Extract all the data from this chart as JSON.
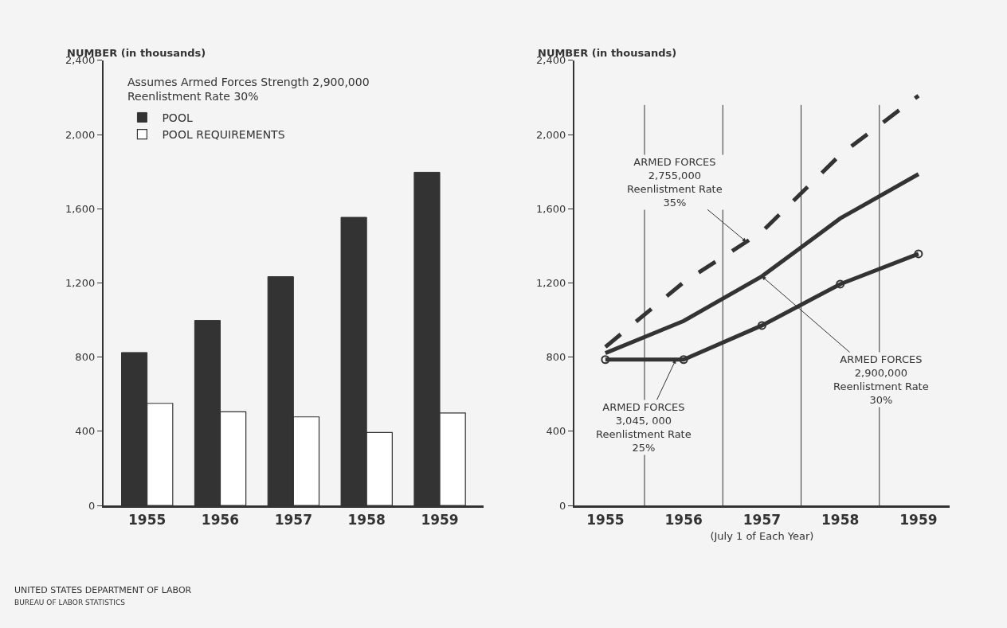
{
  "chart_data": [
    {
      "type": "bar",
      "ylabel": "NUMBER (in thousands)",
      "categories": [
        "1955",
        "1956",
        "1957",
        "1958",
        "1959"
      ],
      "series": [
        {
          "name": "POOL",
          "color": "#333333",
          "values": [
            825,
            998,
            1234,
            1554,
            1797
          ]
        },
        {
          "name": "POOL REQUIREMENTS",
          "color": "#ffffff",
          "values": [
            551,
            505,
            478,
            394,
            499
          ]
        }
      ],
      "ylim": [
        0,
        2400
      ],
      "yticks": [
        0,
        400,
        800,
        {
          "value": 1200,
          "label": "1,200"
        },
        {
          "value": 1600,
          "label": "1,600"
        },
        {
          "value": 2000,
          "label": "2,000"
        },
        {
          "value": 2400,
          "label": "2,400"
        }
      ],
      "legend": "top left",
      "grid": false,
      "annotations": [
        "Assumes Armed Forces Strength 2,900,000\nReenlistment Rate 30%",
        "UNITED STATES DEPARTMENT OF LABOR",
        "BUREAU OF LABOR STATISTICS"
      ]
    },
    {
      "type": "line",
      "ylabel": "NUMBER (in thousands)",
      "xlabel": "(July 1 of Each Year)",
      "x": [
        1955,
        1956,
        1957,
        1958,
        1959
      ],
      "series": [
        {
          "color": "#333333",
          "values": [
            855,
            1204,
            1476,
            1891,
            2210
          ],
          "line_style": "dashed",
          "marker": "none"
        },
        {
          "color": "#333333",
          "values": [
            822,
            995,
            1236,
            1548,
            1787
          ],
          "line_style": "solid",
          "marker": "none"
        },
        {
          "color": "#333333",
          "values": [
            787,
            787,
            971,
            1194,
            1357
          ],
          "line_style": "solid",
          "marker": "circle"
        }
      ],
      "xlim": [
        1954.6,
        1959.4
      ],
      "xticks": [
        1955,
        1956,
        1957,
        1958,
        1959
      ],
      "ylim": [
        0,
        2400
      ],
      "yticks": [
        0,
        400,
        800,
        {
          "value": 1200,
          "label": "1,200"
        },
        {
          "value": 1600,
          "label": "1,600"
        },
        {
          "value": 2000,
          "label": "2,000"
        },
        {
          "value": 2400,
          "label": "2,400"
        }
      ],
      "ref_lines": [
        {
          "axis": "x",
          "value": 1955.5
        },
        {
          "axis": "x",
          "value": 1956.5
        },
        {
          "axis": "x",
          "value": 1957.5
        },
        {
          "axis": "x",
          "value": 1958.5
        }
      ],
      "grid": false,
      "legend": false,
      "annotations": [
        {
          "text": "ARMED FORCES\n2,755,000\nReenlistment Rate\n35%",
          "x": 1956.8,
          "y": 1422
        },
        {
          "text": "ARMED FORCES\n2,900,000\nReenlistment Rate\n30%",
          "x": 1957,
          "y": 1236
        },
        {
          "text": "ARMED FORCES\n3,045, 000\nReenlistment Rate\n25%",
          "x": 1955.9,
          "y": 787
        }
      ]
    }
  ]
}
